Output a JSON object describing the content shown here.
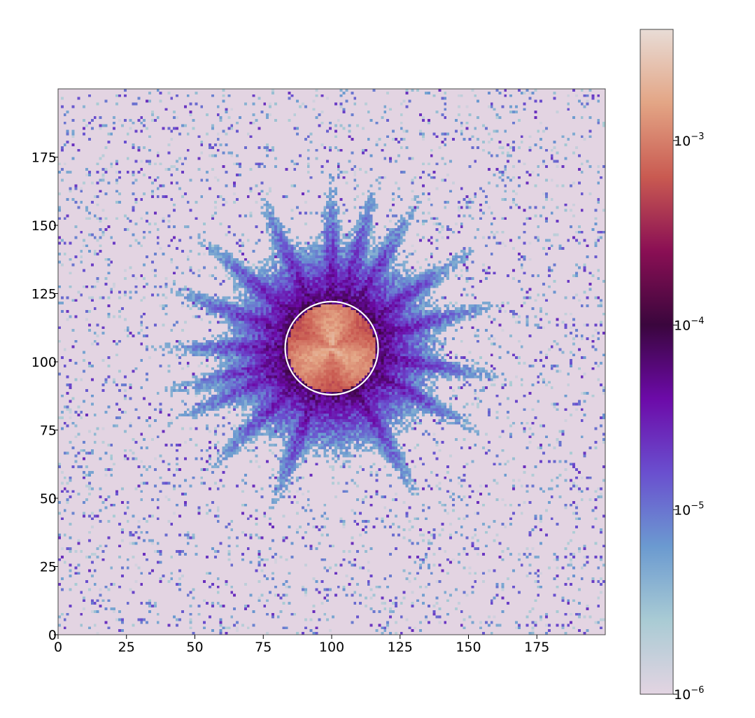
{
  "chart_data": {
    "type": "heatmap",
    "title": "",
    "xlabel": "",
    "ylabel": "",
    "xlim": [
      0,
      200
    ],
    "ylim": [
      0,
      200
    ],
    "x_ticks": [
      0,
      25,
      50,
      75,
      100,
      125,
      150,
      175
    ],
    "y_ticks": [
      0,
      25,
      50,
      75,
      100,
      125,
      150,
      175
    ],
    "x_tick_labels": [
      "0",
      "25",
      "50",
      "75",
      "100",
      "125",
      "150",
      "175"
    ],
    "y_tick_labels": [
      "0",
      "25",
      "50",
      "75",
      "100",
      "125",
      "150",
      "175"
    ],
    "grid": false,
    "colorbar": {
      "scale": "log",
      "range": [
        1e-06,
        0.004
      ],
      "ticks": [
        1e-06,
        1e-05,
        0.0001,
        0.001
      ],
      "tick_labels": [
        {
          "base": "10",
          "exp": "−6"
        },
        {
          "base": "10",
          "exp": "−5"
        },
        {
          "base": "10",
          "exp": "−4"
        },
        {
          "base": "10",
          "exp": "−3"
        }
      ],
      "colormap": [
        "#e3d4e2",
        "#a9cbd4",
        "#6b9ad0",
        "#6a4fcf",
        "#6c0aa8",
        "#3a063d",
        "#8a0f54",
        "#c95a51",
        "#e3a585",
        "#e8dcd6"
      ]
    },
    "annotations": [
      {
        "type": "circle",
        "center": [
          100,
          105
        ],
        "radius": 17,
        "color": "#ffffff"
      }
    ],
    "structure": {
      "center": [
        100,
        105
      ],
      "core_level": 0.0015,
      "core_radius": 16,
      "halo_decay": 0.32,
      "noise_density": 0.1,
      "streak_angles_deg": [
        90,
        115,
        140,
        160,
        180,
        195,
        205,
        225,
        250,
        300,
        330,
        350,
        15,
        35,
        60,
        75
      ]
    }
  }
}
